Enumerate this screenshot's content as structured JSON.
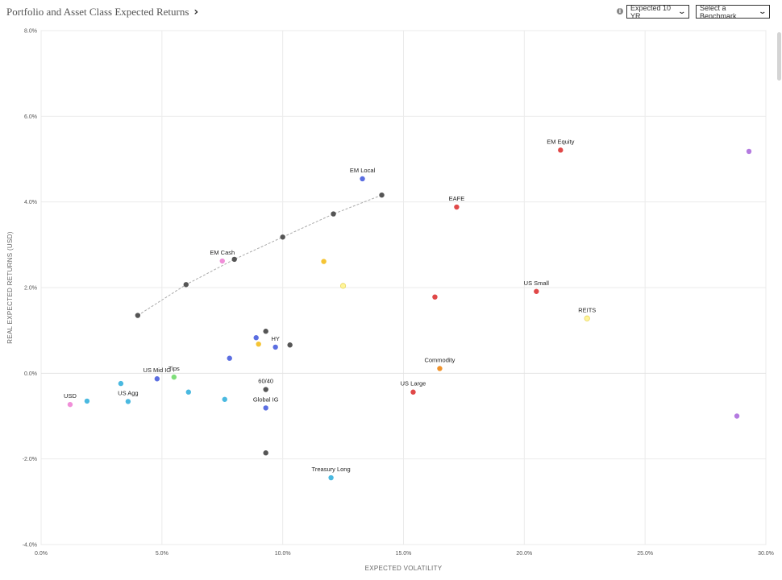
{
  "header": {
    "title": "Portfolio and Asset Class Expected Returns",
    "title_icon": "chevron-right-icon",
    "info_icon": "info-icon",
    "horizon_select": "Expected 10 YR",
    "benchmark_select": "Select a Benchmark"
  },
  "chart_data": {
    "type": "scatter",
    "title": "",
    "xlabel": "EXPECTED VOLATILITY",
    "ylabel": "REAL EXPECTED RETURNS (USD)",
    "xlim": [
      0,
      30
    ],
    "ylim": [
      -4,
      8
    ],
    "x_ticks": [
      "0.0%",
      "5.0%",
      "10.0%",
      "15.0%",
      "20.0%",
      "25.0%",
      "30.0%"
    ],
    "x_tick_values": [
      0,
      5,
      10,
      15,
      20,
      25,
      30
    ],
    "y_ticks": [
      "8.0%",
      "6.0%",
      "4.0%",
      "2.0%",
      "0.0%",
      "-2.0%",
      "-4.0%"
    ],
    "y_tick_values": [
      8,
      6,
      4,
      2,
      0,
      -2,
      -4
    ],
    "grid": true,
    "frontier": {
      "color": "#aaaaaa",
      "point_color": "#555555",
      "points": [
        {
          "x": 4.0,
          "y": 1.35
        },
        {
          "x": 6.0,
          "y": 2.07
        },
        {
          "x": 8.0,
          "y": 2.66
        },
        {
          "x": 10.0,
          "y": 3.18
        },
        {
          "x": 12.1,
          "y": 3.72
        },
        {
          "x": 14.1,
          "y": 4.16
        }
      ]
    },
    "points": [
      {
        "label": "USD",
        "x": 1.2,
        "y": -0.73,
        "color": "#f08fd8",
        "label_pos": "above"
      },
      {
        "label": "",
        "x": 1.9,
        "y": -0.65,
        "color": "#4ab9e0"
      },
      {
        "label": "",
        "x": 3.3,
        "y": -0.24,
        "color": "#4ab9e0"
      },
      {
        "label": "US Agg",
        "x": 3.6,
        "y": -0.66,
        "color": "#4ab9e0",
        "label_pos": "above"
      },
      {
        "label": "US Mid IG",
        "x": 4.8,
        "y": -0.13,
        "color": "#5b6ee1",
        "label_pos": "above"
      },
      {
        "label": "Tips",
        "x": 5.5,
        "y": -0.09,
        "color": "#7fde7a",
        "label_pos": "above"
      },
      {
        "label": "",
        "x": 6.1,
        "y": -0.44,
        "color": "#4ab9e0"
      },
      {
        "label": "EM Cash",
        "x": 7.5,
        "y": 2.62,
        "color": "#f08fd8",
        "label_pos": "above"
      },
      {
        "label": "",
        "x": 7.6,
        "y": -0.61,
        "color": "#4ab9e0"
      },
      {
        "label": "",
        "x": 7.8,
        "y": 0.35,
        "color": "#5b6ee1"
      },
      {
        "label": "",
        "x": 8.9,
        "y": 0.83,
        "color": "#5b6ee1"
      },
      {
        "label": "",
        "x": 9.0,
        "y": 0.68,
        "color": "#f5c434"
      },
      {
        "label": "",
        "x": 9.3,
        "y": 0.98,
        "color": "#555555"
      },
      {
        "label": "60/40",
        "x": 9.3,
        "y": -0.38,
        "color": "#555555",
        "label_pos": "above"
      },
      {
        "label": "Global IG",
        "x": 9.3,
        "y": -0.81,
        "color": "#5b6ee1",
        "label_pos": "above"
      },
      {
        "label": "",
        "x": 9.3,
        "y": -1.86,
        "color": "#555555"
      },
      {
        "label": "HY",
        "x": 9.7,
        "y": 0.61,
        "color": "#5b6ee1",
        "label_pos": "above"
      },
      {
        "label": "",
        "x": 10.3,
        "y": 0.66,
        "color": "#555555"
      },
      {
        "label": "",
        "x": 11.7,
        "y": 2.61,
        "color": "#f5c434"
      },
      {
        "label": "Treasury Long",
        "x": 12.0,
        "y": -2.44,
        "color": "#4ab9e0",
        "label_pos": "above"
      },
      {
        "label": "",
        "x": 12.5,
        "y": 2.04,
        "color": "#fff59a"
      },
      {
        "label": "EM Local",
        "x": 13.3,
        "y": 4.54,
        "color": "#5b6ee1",
        "label_pos": "above"
      },
      {
        "label": "US Large",
        "x": 15.4,
        "y": -0.44,
        "color": "#e04848",
        "label_pos": "above"
      },
      {
        "label": "Commodity",
        "x": 16.5,
        "y": 0.11,
        "color": "#f0922a",
        "label_pos": "above"
      },
      {
        "label": "",
        "x": 16.3,
        "y": 1.78,
        "color": "#e04848"
      },
      {
        "label": "EAFE",
        "x": 17.2,
        "y": 3.88,
        "color": "#e04848",
        "label_pos": "above"
      },
      {
        "label": "US Small",
        "x": 20.5,
        "y": 1.91,
        "color": "#e04848",
        "label_pos": "above"
      },
      {
        "label": "EM Equity",
        "x": 21.5,
        "y": 5.21,
        "color": "#e04848",
        "label_pos": "above"
      },
      {
        "label": "REITS",
        "x": 22.6,
        "y": 1.28,
        "color": "#fff59a",
        "label_pos": "above"
      },
      {
        "label": "",
        "x": 28.8,
        "y": -1.0,
        "color": "#b47be0"
      },
      {
        "label": "",
        "x": 29.3,
        "y": 5.18,
        "color": "#b47be0"
      }
    ]
  }
}
